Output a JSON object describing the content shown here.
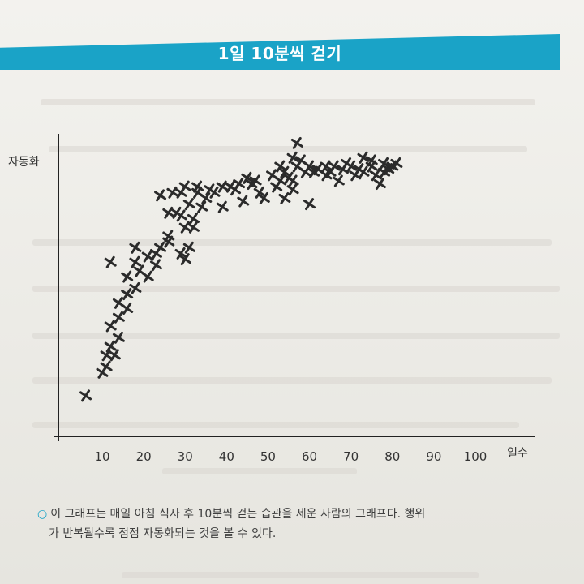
{
  "section_title": "1일 10분씩 걷기",
  "caption": {
    "line1": "이 그래프는 매일 아침 식사 후 10분씩 걷는 습관을 세운 사람의 그래프다. 행위",
    "line2": "가 반복될수록 점점 자동화되는 것을 볼 수 있다."
  },
  "colors": {
    "accent": "#1aa3c7",
    "marker": "#2b2b2b",
    "axis": "#222222"
  },
  "chart_data": {
    "type": "scatter",
    "title": "",
    "ylabel": "자동화",
    "xlabel": "일수",
    "xlim": [
      0,
      120
    ],
    "ylim": [
      0,
      100
    ],
    "xticks": [
      10,
      20,
      30,
      40,
      50,
      60,
      70,
      80,
      90,
      100
    ],
    "xtick_labels": [
      "10",
      "20",
      "30",
      "40",
      "50",
      "60",
      "70",
      "80",
      "90",
      "100"
    ],
    "grid": false,
    "points": [
      {
        "x": 6,
        "y": 14
      },
      {
        "x": 10,
        "y": 22
      },
      {
        "x": 11,
        "y": 24
      },
      {
        "x": 11,
        "y": 28
      },
      {
        "x": 13,
        "y": 28
      },
      {
        "x": 12,
        "y": 31
      },
      {
        "x": 14,
        "y": 34
      },
      {
        "x": 12,
        "y": 38
      },
      {
        "x": 14,
        "y": 41
      },
      {
        "x": 16,
        "y": 44
      },
      {
        "x": 14,
        "y": 46
      },
      {
        "x": 16,
        "y": 49
      },
      {
        "x": 18,
        "y": 51
      },
      {
        "x": 16,
        "y": 55
      },
      {
        "x": 19,
        "y": 57
      },
      {
        "x": 21,
        "y": 55
      },
      {
        "x": 23,
        "y": 59
      },
      {
        "x": 21,
        "y": 62
      },
      {
        "x": 18,
        "y": 65
      },
      {
        "x": 23,
        "y": 63
      },
      {
        "x": 12,
        "y": 60
      },
      {
        "x": 18,
        "y": 60
      },
      {
        "x": 24,
        "y": 65
      },
      {
        "x": 26,
        "y": 67
      },
      {
        "x": 26,
        "y": 69
      },
      {
        "x": 29,
        "y": 63
      },
      {
        "x": 30,
        "y": 61
      },
      {
        "x": 31,
        "y": 65
      },
      {
        "x": 32,
        "y": 72
      },
      {
        "x": 30,
        "y": 72
      },
      {
        "x": 32,
        "y": 75
      },
      {
        "x": 28,
        "y": 77
      },
      {
        "x": 29,
        "y": 76
      },
      {
        "x": 26,
        "y": 77
      },
      {
        "x": 34,
        "y": 79
      },
      {
        "x": 31,
        "y": 80
      },
      {
        "x": 35,
        "y": 82
      },
      {
        "x": 33,
        "y": 84
      },
      {
        "x": 29,
        "y": 84
      },
      {
        "x": 24,
        "y": 83
      },
      {
        "x": 27,
        "y": 84
      },
      {
        "x": 30,
        "y": 86
      },
      {
        "x": 33,
        "y": 86
      },
      {
        "x": 36,
        "y": 85
      },
      {
        "x": 37,
        "y": 84
      },
      {
        "x": 39,
        "y": 86
      },
      {
        "x": 41,
        "y": 86
      },
      {
        "x": 42,
        "y": 85
      },
      {
        "x": 43,
        "y": 87
      },
      {
        "x": 39,
        "y": 79
      },
      {
        "x": 44,
        "y": 81
      },
      {
        "x": 46,
        "y": 87
      },
      {
        "x": 45,
        "y": 89
      },
      {
        "x": 47,
        "y": 88
      },
      {
        "x": 48,
        "y": 84
      },
      {
        "x": 52,
        "y": 86
      },
      {
        "x": 53,
        "y": 88
      },
      {
        "x": 55,
        "y": 89
      },
      {
        "x": 54,
        "y": 91
      },
      {
        "x": 57,
        "y": 93
      },
      {
        "x": 58,
        "y": 95
      },
      {
        "x": 56,
        "y": 85
      },
      {
        "x": 59,
        "y": 91
      },
      {
        "x": 54,
        "y": 82
      },
      {
        "x": 49,
        "y": 82
      },
      {
        "x": 60,
        "y": 93
      },
      {
        "x": 61,
        "y": 91
      },
      {
        "x": 62,
        "y": 92
      },
      {
        "x": 64,
        "y": 93
      },
      {
        "x": 65,
        "y": 91
      },
      {
        "x": 66,
        "y": 93
      },
      {
        "x": 68,
        "y": 92
      },
      {
        "x": 70,
        "y": 93
      },
      {
        "x": 71,
        "y": 90
      },
      {
        "x": 72,
        "y": 92
      },
      {
        "x": 73,
        "y": 91
      },
      {
        "x": 75,
        "y": 93
      },
      {
        "x": 76,
        "y": 90
      },
      {
        "x": 78,
        "y": 91
      },
      {
        "x": 79,
        "y": 92
      },
      {
        "x": 80,
        "y": 93
      },
      {
        "x": 77,
        "y": 87
      },
      {
        "x": 64,
        "y": 90
      },
      {
        "x": 67,
        "y": 88
      },
      {
        "x": 69,
        "y": 94
      },
      {
        "x": 73,
        "y": 96
      },
      {
        "x": 53,
        "y": 93
      },
      {
        "x": 56,
        "y": 96
      },
      {
        "x": 57,
        "y": 101
      },
      {
        "x": 51,
        "y": 90
      },
      {
        "x": 60,
        "y": 80
      },
      {
        "x": 56,
        "y": 88
      },
      {
        "x": 75,
        "y": 95
      },
      {
        "x": 81,
        "y": 94
      },
      {
        "x": 78,
        "y": 94
      }
    ]
  }
}
